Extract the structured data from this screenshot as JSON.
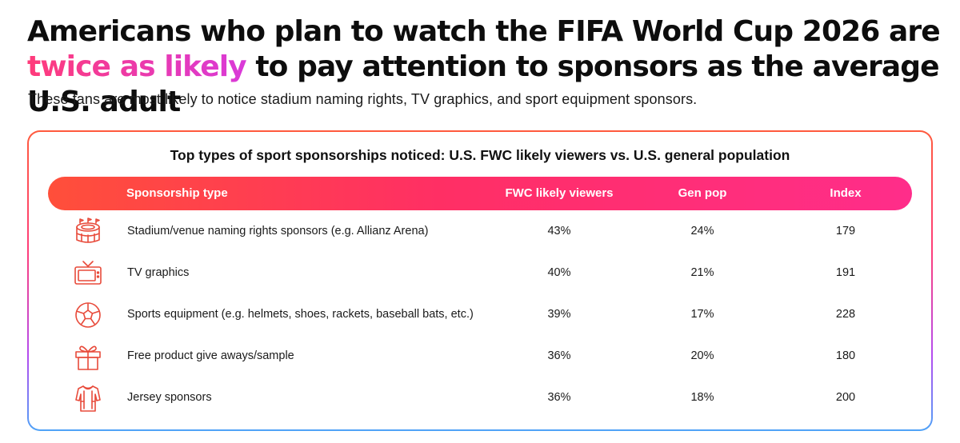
{
  "headline": {
    "part1": "Americans who plan to watch the FIFA World Cup 2026 are ",
    "accent": "twice as likely",
    "part2": " to pay attention to sponsors as the average U.S. adult"
  },
  "subhead": "These fans are most likely to notice stadium naming rights, TV graphics, and sport equipment sponsors.",
  "table": {
    "title": "Top types of sport sponsorships noticed: U.S. FWC likely viewers vs. U.S. general population",
    "headers": {
      "type": "Sponsorship type",
      "fwc": "FWC likely viewers",
      "gen": "Gen pop",
      "index": "Index"
    },
    "rows": [
      {
        "icon": "stadium-icon",
        "type": "Stadium/venue naming rights sponsors (e.g. Allianz Arena)",
        "fwc": "43%",
        "gen": "24%",
        "index": "179"
      },
      {
        "icon": "tv-icon",
        "type": "TV graphics",
        "fwc": "40%",
        "gen": "21%",
        "index": "191"
      },
      {
        "icon": "soccer-ball-icon",
        "type": "Sports equipment (e.g. helmets, shoes, rackets, baseball bats, etc.)",
        "fwc": "39%",
        "gen": "17%",
        "index": "228"
      },
      {
        "icon": "gift-icon",
        "type": "Free product give aways/sample",
        "fwc": "36%",
        "gen": "20%",
        "index": "180"
      },
      {
        "icon": "jersey-icon",
        "type": "Jersey sponsors",
        "fwc": "36%",
        "gen": "18%",
        "index": "200"
      }
    ]
  },
  "colors": {
    "accent_start": "#ff3b7a",
    "accent_end": "#d93ad9",
    "header_start": "#ff4f3a",
    "header_end": "#ff2d8a",
    "icon": "#e84a3a"
  }
}
